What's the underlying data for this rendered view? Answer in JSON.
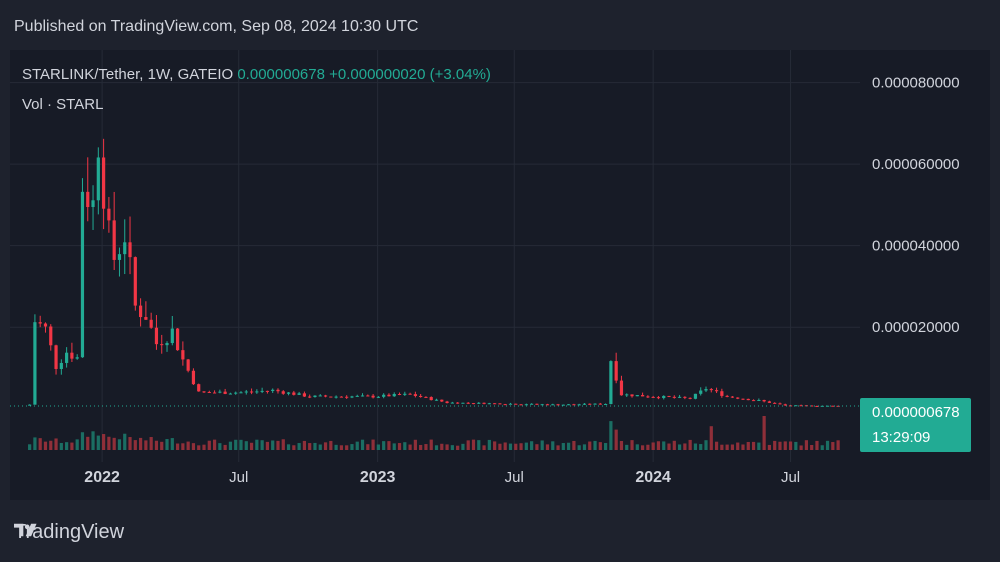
{
  "header": {
    "published": "Published on TradingView.com, Sep 08, 2024 10:30 UTC"
  },
  "legend": {
    "symbol": "STARLINK/Tether, 1W, GATEIO",
    "last": "0.000000678",
    "change": "+0.000000020 (+3.04%)",
    "volume_label": "Vol · STARL"
  },
  "price_badge": {
    "price": "0.000000678",
    "countdown": "13:29:09"
  },
  "brand": {
    "name": "TradingView",
    "logo_icon": "tradingview-logo-icon"
  },
  "colors": {
    "up": "#22ab94",
    "down": "#f23645",
    "up_vol": "#1b6e63",
    "down_vol": "#8f2f39",
    "text": "#d1d4dc",
    "grid": "#262b37",
    "bg": "#171b26"
  },
  "chart_data": {
    "type": "candlestick",
    "title": "STARLINK/Tether, 1W, GATEIO",
    "y_axis": {
      "ticks": [
        2e-05,
        4e-05,
        6e-05,
        8e-05
      ],
      "tick_labels": [
        "0.000020000",
        "0.000040000",
        "0.000060000",
        "0.000080000"
      ],
      "range": [
        -8e-07,
        8.8e-05
      ]
    },
    "x_axis": {
      "range": [
        "2021-09-01",
        "2024-10-01"
      ],
      "ticks": [
        "2022-01-01",
        "2022-07-01",
        "2023-01-01",
        "2023-07-01",
        "2024-01-01",
        "2024-07-01"
      ],
      "tick_labels": [
        "2022",
        "Jul",
        "2023",
        "Jul",
        "2024",
        "Jul"
      ]
    },
    "last_price": 6.78e-07,
    "price_anchors": [
      {
        "date": "2021-09-27",
        "close": 1e-06
      },
      {
        "date": "2021-10-04",
        "close": 2.15e-05
      },
      {
        "date": "2021-10-18",
        "close": 1.95e-05
      },
      {
        "date": "2021-11-01",
        "close": 1.05e-05
      },
      {
        "date": "2021-11-15",
        "close": 1.4e-05
      },
      {
        "date": "2021-11-29",
        "close": 1.25e-05
      },
      {
        "date": "2021-12-06",
        "close": 5.5e-05
      },
      {
        "date": "2021-12-20",
        "close": 5e-05
      },
      {
        "date": "2021-12-27",
        "close": 6.7e-05
      },
      {
        "date": "2022-01-10",
        "close": 4.2e-05
      },
      {
        "date": "2022-01-17",
        "close": 3.7e-05
      },
      {
        "date": "2022-01-31",
        "close": 4.3e-05
      },
      {
        "date": "2022-02-14",
        "close": 2.5e-05
      },
      {
        "date": "2022-02-28",
        "close": 2.3e-05
      },
      {
        "date": "2022-03-14",
        "close": 1.6e-05
      },
      {
        "date": "2022-04-04",
        "close": 1.9e-05
      },
      {
        "date": "2022-04-18",
        "close": 1.2e-05
      },
      {
        "date": "2022-05-09",
        "close": 4e-06
      },
      {
        "date": "2022-07-04",
        "close": 4e-06
      },
      {
        "date": "2022-08-15",
        "close": 4.5e-06
      },
      {
        "date": "2022-10-03",
        "close": 3e-06
      },
      {
        "date": "2022-12-26",
        "close": 3e-06
      },
      {
        "date": "2023-02-13",
        "close": 3.5e-06
      },
      {
        "date": "2023-04-03",
        "close": 1.5e-06
      },
      {
        "date": "2023-08-28",
        "close": 1e-06
      },
      {
        "date": "2023-10-30",
        "close": 1.2e-06
      },
      {
        "date": "2023-11-06",
        "close": 1.2e-05
      },
      {
        "date": "2023-11-20",
        "close": 3.5e-06
      },
      {
        "date": "2024-01-01",
        "close": 3e-06
      },
      {
        "date": "2024-02-19",
        "close": 2.5e-06
      },
      {
        "date": "2024-03-11",
        "close": 5e-06
      },
      {
        "date": "2024-04-08",
        "close": 3e-06
      },
      {
        "date": "2024-05-20",
        "close": 2e-06
      },
      {
        "date": "2024-06-24",
        "close": 8e-07
      },
      {
        "date": "2024-09-02",
        "close": 6.78e-07
      }
    ],
    "volume_spikes": [
      {
        "date": "2021-12-20",
        "relative": 0.55
      },
      {
        "date": "2023-11-06",
        "relative": 0.85
      },
      {
        "date": "2023-11-13",
        "relative": 0.6
      },
      {
        "date": "2024-03-18",
        "relative": 0.7
      },
      {
        "date": "2024-05-27",
        "relative": 1.0
      }
    ]
  }
}
